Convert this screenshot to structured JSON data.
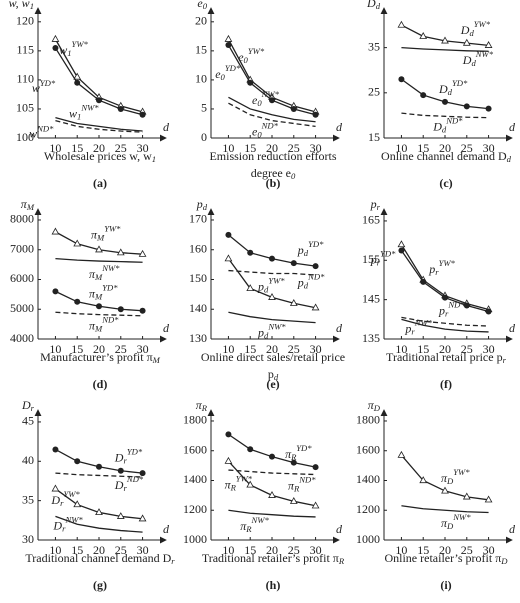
{
  "chart_data": [
    {
      "type": "line",
      "panel": "(a)",
      "ylabel": {
        "text": "w, w",
        "sub": "1"
      },
      "xlabel": "d",
      "xtitle": [
        {
          "text": "Wholesale prices w, w",
          "sub": "1"
        }
      ],
      "x": [
        10,
        15,
        20,
        25,
        30
      ],
      "xlim": [
        6,
        34
      ],
      "xticks": [
        10,
        15,
        20,
        25,
        30
      ],
      "ylim": [
        100,
        121
      ],
      "yticks": [
        100,
        105,
        110,
        115,
        120
      ],
      "series": [
        {
          "name": "w",
          "sub": "1",
          "sup": "YW*",
          "marker": "triangle",
          "dashed": false,
          "color": "#222222",
          "values": [
            117,
            110.5,
            107,
            105.5,
            104.5
          ]
        },
        {
          "name": "w",
          "sup": "YD*",
          "marker": "circle",
          "dashed": false,
          "color": "#222222",
          "values": [
            115.5,
            109.5,
            106.5,
            105,
            104
          ]
        },
        {
          "name": "w",
          "sub": "1",
          "sup": "NW*",
          "dashed": false,
          "color": "#222222",
          "values": [
            103.5,
            102.5,
            102,
            101.5,
            101.2
          ]
        },
        {
          "name": "w",
          "sup": "ND*",
          "dashed": true,
          "color": "#222222",
          "values": [
            103,
            102,
            101.5,
            101.2,
            101
          ]
        }
      ]
    },
    {
      "type": "line",
      "panel": "(b)",
      "ylabel": {
        "text": "e",
        "sub": "0"
      },
      "xlabel": "d",
      "xtitle": [
        {
          "text": "Emission reduction efforts"
        },
        {
          "text": "degree e",
          "sub": "0"
        }
      ],
      "x": [
        10,
        15,
        20,
        25,
        30
      ],
      "xlim": [
        6,
        34
      ],
      "xticks": [
        10,
        15,
        20,
        25,
        30
      ],
      "ylim": [
        0,
        21
      ],
      "yticks": [
        0,
        5,
        10,
        15,
        20
      ],
      "series": [
        {
          "name": "e",
          "sub": "0",
          "sup": "YW*",
          "marker": "triangle",
          "dashed": false,
          "color": "#222222",
          "values": [
            17,
            10,
            7,
            5.5,
            4.5
          ]
        },
        {
          "name": "e",
          "sub": "0",
          "sup": "YD*",
          "marker": "circle",
          "dashed": false,
          "color": "#222222",
          "values": [
            16,
            9.5,
            6.5,
            5,
            4
          ]
        },
        {
          "name": "e",
          "sub": "0",
          "sup": "NW*",
          "dashed": false,
          "color": "#222222",
          "values": [
            7,
            5,
            4,
            3.2,
            2.8
          ]
        },
        {
          "name": "e",
          "sub": "0",
          "sup": "ND*",
          "dashed": true,
          "color": "#222222",
          "values": [
            6,
            4,
            3,
            2.5,
            2
          ]
        }
      ]
    },
    {
      "type": "line",
      "panel": "(c)",
      "ylabel": {
        "text": "D",
        "sub": "d"
      },
      "xlabel": "d",
      "xtitle": [
        {
          "text": "Online channel demand D",
          "sub": "d"
        }
      ],
      "x": [
        10,
        15,
        20,
        25,
        30
      ],
      "xlim": [
        6,
        34
      ],
      "xticks": [
        10,
        15,
        20,
        25,
        30
      ],
      "ylim": [
        15,
        42
      ],
      "yticks": [
        15,
        25,
        35
      ],
      "series": [
        {
          "name": "D",
          "sub": "d",
          "sup": "YW*",
          "marker": "triangle",
          "dashed": false,
          "color": "#222222",
          "values": [
            40,
            37.5,
            36.5,
            36,
            35.5
          ]
        },
        {
          "name": "D",
          "sub": "d",
          "sup": "NW*",
          "dashed": false,
          "color": "#222222",
          "values": [
            35,
            34.7,
            34.5,
            34.3,
            34.2
          ]
        },
        {
          "name": "D",
          "sub": "d",
          "sup": "YD*",
          "marker": "circle",
          "dashed": false,
          "color": "#222222",
          "values": [
            28,
            24.5,
            23,
            22,
            21.5
          ]
        },
        {
          "name": "D",
          "sub": "d",
          "sup": "ND*",
          "dashed": true,
          "color": "#222222",
          "values": [
            20.5,
            20,
            19.8,
            19.6,
            19.5
          ]
        }
      ]
    },
    {
      "type": "line",
      "panel": "(d)",
      "ylabel": {
        "text": "π",
        "sub": "M"
      },
      "xlabel": "d",
      "xtitle": [
        {
          "text": "Manufacturer’s profit π",
          "sub": "M"
        }
      ],
      "x": [
        10,
        15,
        20,
        25,
        30
      ],
      "xlim": [
        6,
        34
      ],
      "xticks": [
        10,
        15,
        20,
        25,
        30
      ],
      "ylim": [
        4000,
        8100
      ],
      "yticks": [
        4000,
        5000,
        6000,
        7000,
        8000
      ],
      "series": [
        {
          "name": "π",
          "sub": "M",
          "sup": "YW*",
          "marker": "triangle",
          "dashed": false,
          "color": "#222222",
          "values": [
            7600,
            7200,
            7000,
            6900,
            6850
          ]
        },
        {
          "name": "π",
          "sub": "M",
          "sup": "NW*",
          "dashed": false,
          "color": "#222222",
          "values": [
            6700,
            6650,
            6620,
            6600,
            6580
          ]
        },
        {
          "name": "π",
          "sub": "M",
          "sup": "YD*",
          "marker": "circle",
          "dashed": false,
          "color": "#222222",
          "values": [
            5600,
            5250,
            5100,
            5000,
            4950
          ]
        },
        {
          "name": "π",
          "sub": "M",
          "sup": "ND*",
          "dashed": true,
          "color": "#222222",
          "values": [
            4900,
            4850,
            4820,
            4800,
            4780
          ]
        }
      ]
    },
    {
      "type": "line",
      "panel": "(e)",
      "ylabel": {
        "text": "p",
        "sub": "d"
      },
      "xlabel": "d",
      "xtitle": [
        {
          "text": "Online direct sales/retail price"
        },
        {
          "text": "p",
          "sub": "d"
        }
      ],
      "x": [
        10,
        15,
        20,
        25,
        30
      ],
      "xlim": [
        6,
        34
      ],
      "xticks": [
        10,
        15,
        20,
        25,
        30
      ],
      "ylim": [
        130,
        171
      ],
      "yticks": [
        130,
        140,
        150,
        160,
        170
      ],
      "series": [
        {
          "name": "p",
          "sub": "d",
          "sup": "YD*",
          "marker": "circle",
          "dashed": false,
          "color": "#222222",
          "values": [
            165,
            159,
            157,
            155.5,
            154.5
          ]
        },
        {
          "name": "p",
          "sub": "d",
          "sup": "ND*",
          "dashed": true,
          "color": "#222222",
          "values": [
            153,
            152.5,
            152,
            152,
            151.5
          ]
        },
        {
          "name": "p",
          "sub": "d",
          "sup": "YW*",
          "marker": "triangle",
          "dashed": false,
          "color": "#222222",
          "values": [
            157,
            147,
            144,
            142,
            140.5
          ]
        },
        {
          "name": "p",
          "sub": "d",
          "sup": "NW*",
          "dashed": false,
          "color": "#222222",
          "values": [
            139,
            137.5,
            136.5,
            136,
            135.5
          ]
        }
      ]
    },
    {
      "type": "line",
      "panel": "(f)",
      "ylabel": {
        "text": "p",
        "sub": "r"
      },
      "xlabel": "d",
      "xtitle": [
        {
          "text": "Traditional retail price p",
          "sub": "r"
        }
      ],
      "x": [
        10,
        15,
        20,
        25,
        30
      ],
      "xlim": [
        6,
        34
      ],
      "xticks": [
        10,
        15,
        20,
        25,
        30
      ],
      "ylim": [
        135,
        166
      ],
      "yticks": [
        135,
        145,
        155,
        165
      ],
      "series": [
        {
          "name": "p",
          "sub": "r",
          "sup": "YW*",
          "marker": "triangle",
          "dashed": false,
          "color": "#222222",
          "values": [
            159,
            150,
            146,
            144,
            142.5
          ]
        },
        {
          "name": "p",
          "sub": "r",
          "sup": "YD*",
          "marker": "circle",
          "dashed": false,
          "color": "#222222",
          "values": [
            157.5,
            149.5,
            145.5,
            143.5,
            142
          ]
        },
        {
          "name": "p",
          "sub": "r",
          "sup": "ND*",
          "dashed": true,
          "color": "#222222",
          "values": [
            140.5,
            139.5,
            139,
            138.5,
            138.3
          ]
        },
        {
          "name": "p",
          "sub": "r",
          "sup": "NW*",
          "dashed": false,
          "color": "#222222",
          "values": [
            140,
            138.5,
            137.5,
            137,
            136.8
          ]
        }
      ]
    },
    {
      "type": "line",
      "panel": "(g)",
      "ylabel": {
        "text": "D",
        "sub": "r"
      },
      "xlabel": "d",
      "xtitle": [
        {
          "text": "Traditional channel demand  D",
          "sub": "r"
        }
      ],
      "x": [
        10,
        15,
        20,
        25,
        30
      ],
      "xlim": [
        6,
        34
      ],
      "xticks": [
        10,
        15,
        20,
        25,
        30
      ],
      "ylim": [
        30,
        45.5
      ],
      "yticks": [
        30,
        35,
        40,
        45
      ],
      "series": [
        {
          "name": "D",
          "sub": "r",
          "sup": "YD*",
          "marker": "circle",
          "dashed": false,
          "color": "#222222",
          "values": [
            41.5,
            40,
            39.3,
            38.8,
            38.5
          ]
        },
        {
          "name": "D",
          "sub": "r",
          "sup": "ND*",
          "dashed": true,
          "color": "#222222",
          "values": [
            38.5,
            38.3,
            38.2,
            38.1,
            38
          ]
        },
        {
          "name": "D",
          "sub": "r",
          "sup": "YW*",
          "marker": "triangle",
          "dashed": false,
          "color": "#222222",
          "values": [
            36.5,
            34.5,
            33.5,
            33,
            32.7
          ]
        },
        {
          "name": "D",
          "sub": "r",
          "sup": "NW*",
          "dashed": false,
          "color": "#222222",
          "values": [
            33,
            32,
            31.5,
            31.2,
            31
          ]
        }
      ]
    },
    {
      "type": "line",
      "panel": "(h)",
      "ylabel": {
        "text": "π",
        "sub": "R"
      },
      "xlabel": "d",
      "xtitle": [
        {
          "text": "Traditional retailer’s profit π",
          "sub": "R"
        }
      ],
      "x": [
        10,
        15,
        20,
        25,
        30
      ],
      "xlim": [
        6,
        34
      ],
      "xticks": [
        10,
        15,
        20,
        25,
        30
      ],
      "ylim": [
        1000,
        1820
      ],
      "yticks": [
        1000,
        1200,
        1400,
        1600,
        1800
      ],
      "series": [
        {
          "name": "π",
          "sub": "R",
          "sup": "YD*",
          "marker": "circle",
          "dashed": false,
          "color": "#222222",
          "values": [
            1710,
            1610,
            1560,
            1520,
            1490
          ]
        },
        {
          "name": "π",
          "sub": "R",
          "sup": "ND*",
          "dashed": true,
          "color": "#222222",
          "values": [
            1470,
            1460,
            1450,
            1445,
            1440
          ]
        },
        {
          "name": "π",
          "sub": "R",
          "sup": "YW*",
          "marker": "triangle",
          "dashed": false,
          "color": "#222222",
          "values": [
            1530,
            1370,
            1300,
            1260,
            1230
          ]
        },
        {
          "name": "π",
          "sub": "R",
          "sup": "NW*",
          "dashed": false,
          "color": "#222222",
          "values": [
            1200,
            1180,
            1170,
            1160,
            1155
          ]
        }
      ]
    },
    {
      "type": "line",
      "panel": "(i)",
      "ylabel": {
        "text": "π",
        "sub": "D"
      },
      "xlabel": "d",
      "xtitle": [
        {
          "text": "Online retailer’s profit π",
          "sub": "D"
        }
      ],
      "x": [
        10,
        15,
        20,
        25,
        30
      ],
      "xlim": [
        6,
        34
      ],
      "xticks": [
        10,
        15,
        20,
        25,
        30
      ],
      "ylim": [
        1000,
        1820
      ],
      "yticks": [
        1000,
        1200,
        1400,
        1600,
        1800
      ],
      "series": [
        {
          "name": "π",
          "sub": "D",
          "sup": "YW*",
          "marker": "triangle",
          "dashed": false,
          "color": "#222222",
          "values": [
            1570,
            1400,
            1330,
            1290,
            1270
          ]
        },
        {
          "name": "π",
          "sub": "D",
          "sup": "NW*",
          "dashed": false,
          "color": "#222222",
          "values": [
            1230,
            1210,
            1200,
            1190,
            1185
          ]
        }
      ]
    }
  ]
}
